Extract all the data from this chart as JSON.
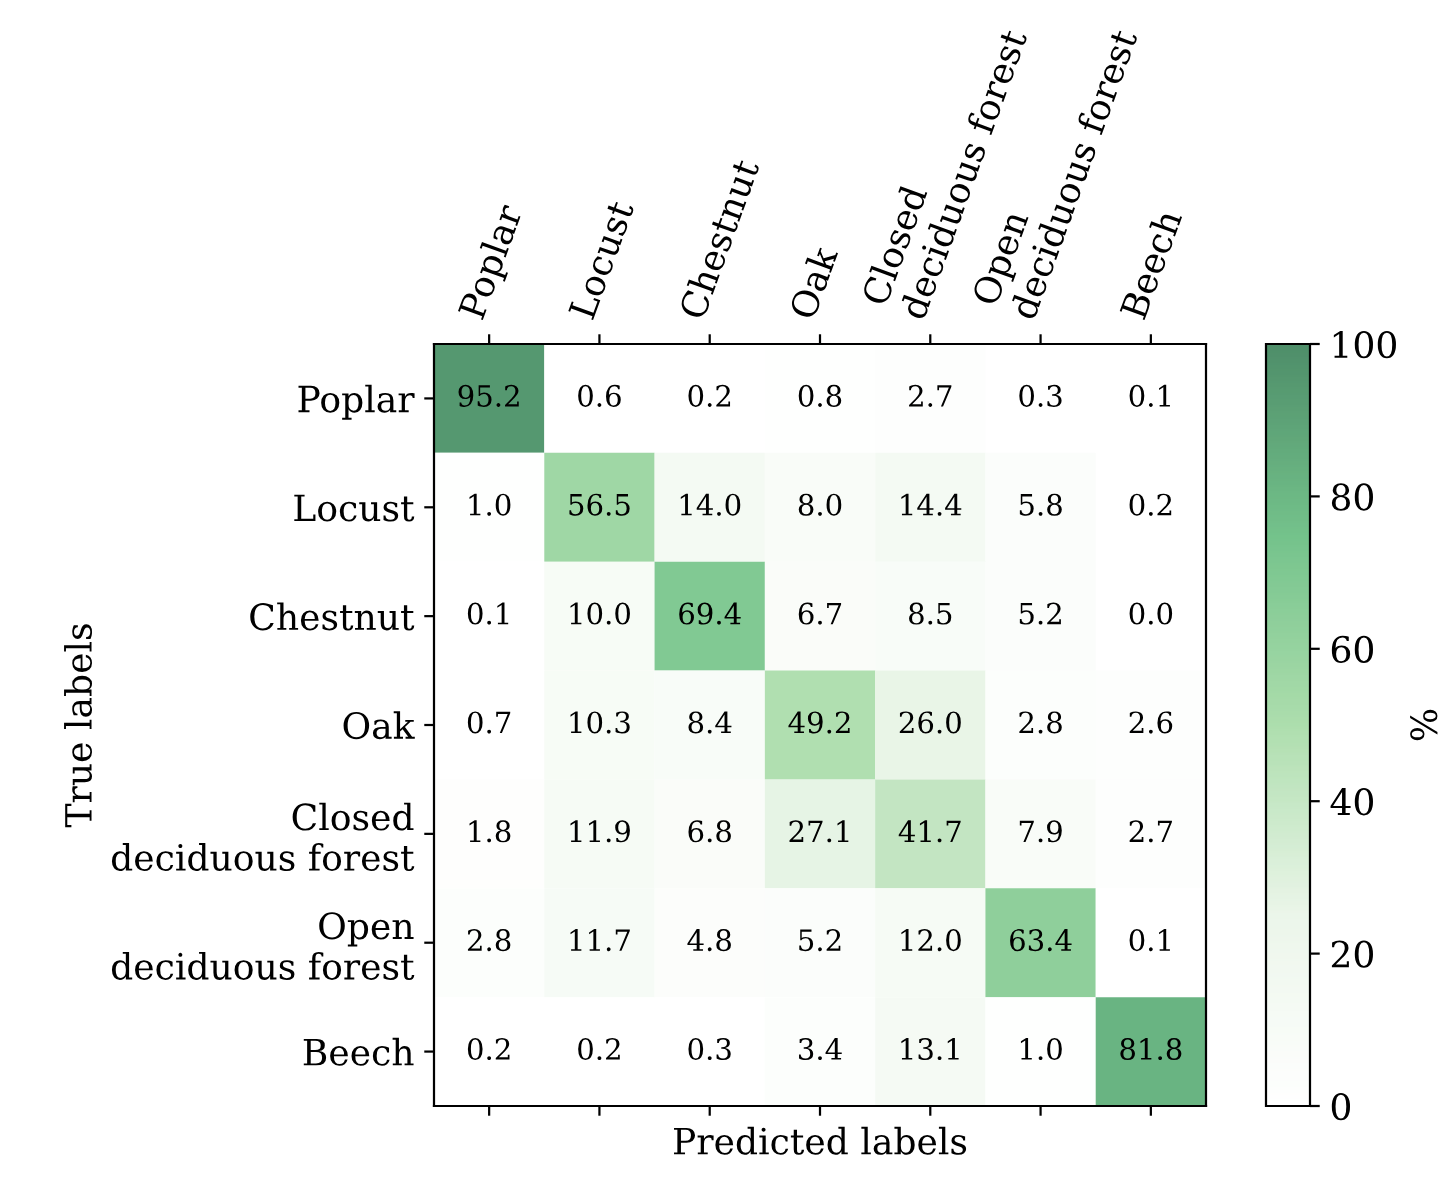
{
  "chart_data": {
    "type": "heatmap",
    "xlabel": "Predicted labels",
    "ylabel": "True labels",
    "clabel": "%",
    "categories": [
      "Poplar",
      "Locust",
      "Chestnut",
      "Oak",
      "Closed\ndeciduous forest",
      "Open\ndeciduous forest",
      "Beech"
    ],
    "y_categories": [
      "Poplar",
      "Locust",
      "Chestnut",
      "Oak",
      "Closed\ndeciduous forest",
      "Open\ndeciduous forest",
      "Beech"
    ],
    "cells": [
      [
        95.2,
        0.6,
        0.2,
        0.8,
        2.7,
        0.3,
        0.1
      ],
      [
        1.0,
        56.5,
        14.0,
        8.0,
        14.4,
        5.8,
        0.2
      ],
      [
        0.1,
        10.0,
        69.4,
        6.7,
        8.5,
        5.2,
        0.0
      ],
      [
        0.7,
        10.3,
        8.4,
        49.2,
        26.0,
        2.8,
        2.6
      ],
      [
        1.8,
        11.9,
        6.8,
        27.1,
        41.7,
        7.9,
        2.7
      ],
      [
        2.8,
        11.7,
        4.8,
        5.2,
        12.0,
        63.4,
        0.1
      ],
      [
        0.2,
        0.2,
        0.3,
        3.4,
        13.1,
        1.0,
        81.8
      ]
    ],
    "cell_labels": [
      [
        "95.2",
        "0.6",
        "0.2",
        "0.8",
        "2.7",
        "0.3",
        "0.1"
      ],
      [
        "1.0",
        "56.5",
        "14.0",
        "8.0",
        "14.4",
        "5.8",
        "0.2"
      ],
      [
        "0.1",
        "10.0",
        "69.4",
        "6.7",
        "8.5",
        "5.2",
        "0.0"
      ],
      [
        "0.7",
        "10.3",
        "8.4",
        "49.2",
        "26.0",
        "2.8",
        "2.6"
      ],
      [
        "1.8",
        "11.9",
        "6.8",
        "27.1",
        "41.7",
        "7.9",
        "2.7"
      ],
      [
        "2.8",
        "11.7",
        "4.8",
        "5.2",
        "12.0",
        "63.4",
        "0.1"
      ],
      [
        "0.2",
        "0.2",
        "0.3",
        "3.4",
        "13.1",
        "1.0",
        "81.8"
      ]
    ],
    "clim": [
      0,
      100
    ],
    "cticks": [
      0,
      20,
      40,
      60,
      80,
      100
    ]
  }
}
